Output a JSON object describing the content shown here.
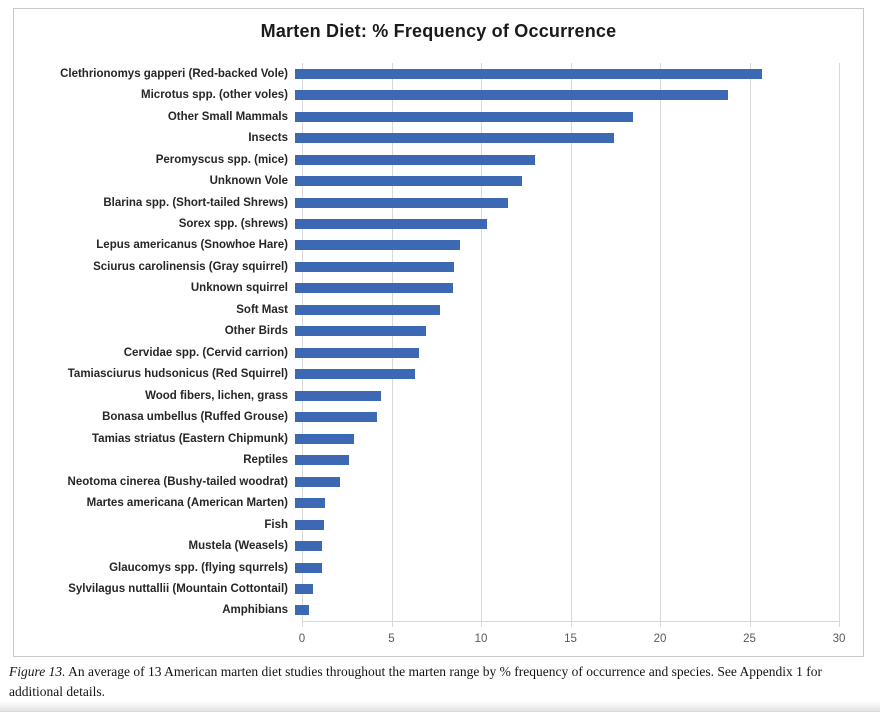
{
  "chart": {
    "title": "Marten Diet: % Frequency of Occurrence"
  },
  "chart_data": {
    "type": "bar",
    "orientation": "horizontal",
    "title": "Marten Diet: % Frequency of Occurrence",
    "categories": [
      "Clethrionomys gapperi (Red-backed Vole)",
      "Microtus spp. (other voles)",
      "Other Small Mammals",
      "Insects",
      "Peromyscus spp. (mice)",
      "Unknown Vole",
      "Blarina spp. (Short-tailed Shrews)",
      "Sorex spp. (shrews)",
      "Lepus americanus (Snowhoe Hare)",
      "Sciurus carolinensis (Gray squirrel)",
      "Unknown squirrel",
      "Soft Mast",
      "Other Birds",
      "Cervidae spp. (Cervid carrion)",
      "Tamiasciurus hudsonicus (Red Squirrel)",
      "Wood fibers, lichen, grass",
      "Bonasa umbellus (Ruffed Grouse)",
      "Tamias striatus (Eastern Chipmunk)",
      "Reptiles",
      "Neotoma cinerea (Bushy-tailed woodrat)",
      "Martes americana (American Marten)",
      "Fish",
      "Mustela (Weasels)",
      "Glaucomys spp. (flying squrrels)",
      "Sylvilagus nuttallii (Mountain Cottontail)",
      "Amphibians"
    ],
    "values": [
      26.1,
      24.2,
      18.9,
      17.8,
      13.4,
      12.7,
      11.9,
      10.7,
      9.2,
      8.9,
      8.8,
      8.1,
      7.3,
      6.9,
      6.7,
      4.8,
      4.6,
      3.3,
      3.0,
      2.5,
      1.7,
      1.6,
      1.5,
      1.5,
      1.0,
      0.8
    ],
    "xlabel": "",
    "ylabel": "",
    "xlim": [
      0,
      30
    ],
    "x_ticks": [
      0,
      5,
      10,
      15,
      20,
      25,
      30
    ],
    "grid": true,
    "legend": "none",
    "bar_color": "#3c68b4"
  },
  "caption": {
    "label": "Figure 13.",
    "text": " An average of 13 American marten diet studies throughout the marten range by % frequency of occurrence and species. See Appendix 1 for additional details."
  },
  "colors": {
    "bar": "#3c68b4",
    "gridline": "#d9d9d9",
    "axis_text": "#595959",
    "frame_border": "#c9c9c9"
  }
}
